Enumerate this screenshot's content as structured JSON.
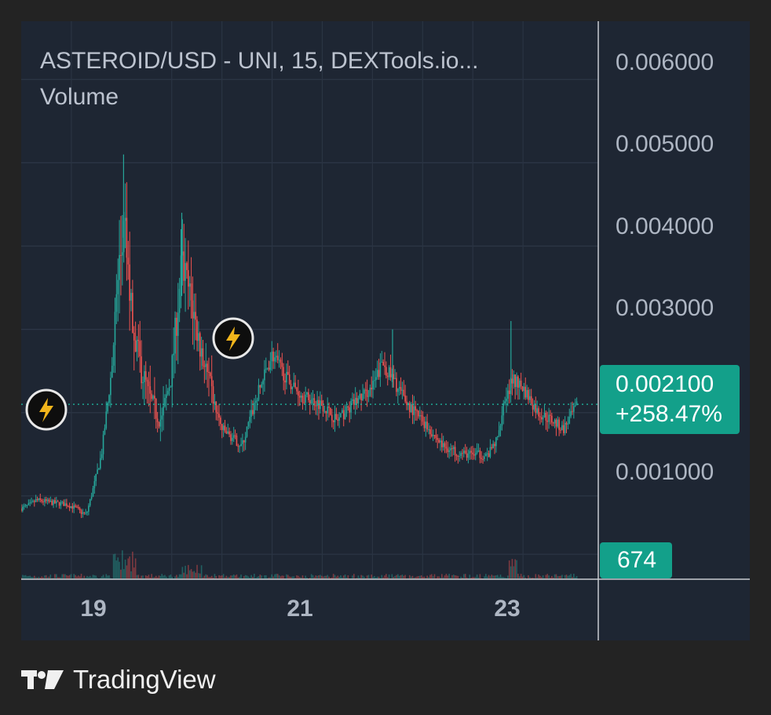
{
  "legend": {
    "title": "ASTEROID/USD - UNI, 15, DEXTools.io...",
    "indicator": "Volume"
  },
  "brand": {
    "name": "TradingView",
    "icon": "tradingview-logo-icon"
  },
  "badges": {
    "last_price": "0.002100",
    "change": "+258.47%",
    "volume": "674"
  },
  "colors": {
    "up": "#26a69a",
    "down": "#ef5350",
    "background": "#1e2633",
    "badge": "#13a08a"
  },
  "events": [
    {
      "name": "lightning-event-icon",
      "x": 18.45,
      "price": 0.00117
    },
    {
      "name": "lightning-event-icon",
      "x": 20.35,
      "price": 0.00242
    }
  ],
  "chart_data": {
    "type": "candlestick",
    "title": "ASTEROID/USD - UNI, 15, DEXTools.io...",
    "x_ticks": [
      "19",
      "21",
      "23"
    ],
    "x_tick_values": [
      19,
      21,
      23
    ],
    "xlim": [
      18.0,
      23.75
    ],
    "y_ticks": [
      "0.006000",
      "0.005000",
      "0.004000",
      "0.003000",
      "0.001000"
    ],
    "y_tick_values": [
      0.006,
      0.005,
      0.004,
      0.003,
      0.001
    ],
    "ylim": [
      0.0,
      0.0067
    ],
    "last_price": 0.0021,
    "change_pct": "+258.47%",
    "last_volume": 674,
    "grid": true,
    "price_path": {
      "x": [
        18.0,
        18.1,
        18.15,
        18.3,
        18.45,
        18.55,
        18.6,
        18.65,
        18.72,
        18.8,
        18.9,
        18.97,
        19.03,
        19.1,
        19.15,
        19.2,
        19.3,
        19.4,
        19.5,
        19.6,
        19.7,
        19.8,
        19.9,
        20.0,
        20.1,
        20.2,
        20.35,
        20.5,
        20.65,
        20.8,
        21.0,
        21.15,
        21.3,
        21.5,
        21.6,
        21.7,
        21.85,
        22.0,
        22.2,
        22.4,
        22.55,
        22.65,
        22.75,
        22.8,
        22.9,
        23.0,
        23.15,
        23.3,
        23.4,
        23.55
      ],
      "price": [
        0.00085,
        0.0009,
        0.00095,
        0.00092,
        0.0009,
        0.00085,
        0.0008,
        0.00078,
        0.0011,
        0.0015,
        0.0025,
        0.0037,
        0.0042,
        0.0032,
        0.0028,
        0.0025,
        0.0021,
        0.0019,
        0.0025,
        0.0038,
        0.0033,
        0.0027,
        0.0022,
        0.0018,
        0.0017,
        0.0016,
        0.0022,
        0.0027,
        0.0024,
        0.0022,
        0.0021,
        0.0019,
        0.0021,
        0.0023,
        0.0026,
        0.0024,
        0.0021,
        0.0019,
        0.0016,
        0.0015,
        0.0015,
        0.00148,
        0.0017,
        0.0021,
        0.0024,
        0.0023,
        0.002,
        0.0019,
        0.0018,
        0.0021
      ]
    }
  }
}
